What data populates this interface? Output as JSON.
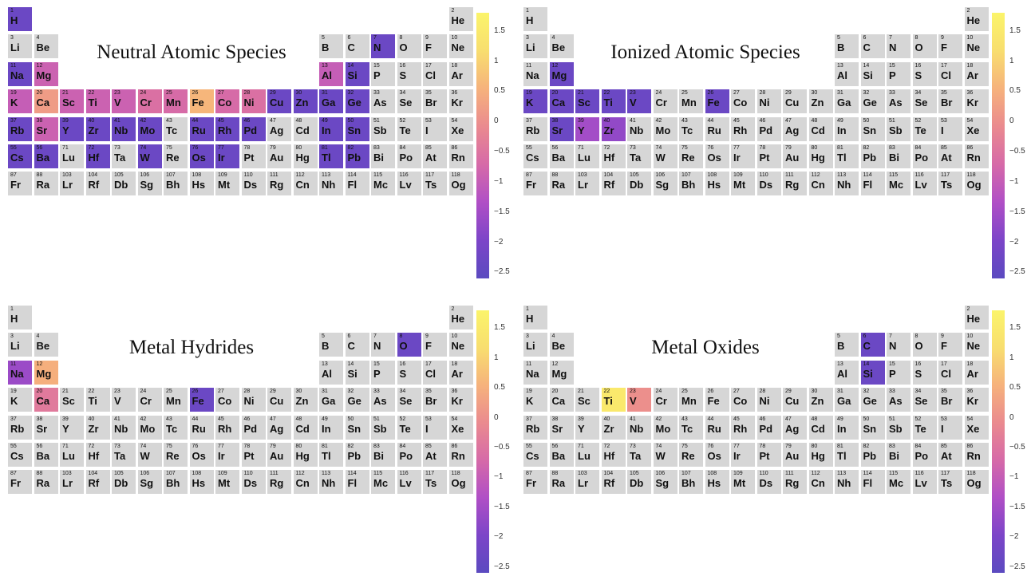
{
  "colors": {
    "empty": "#d6d6d6",
    "colormap": [
      "#5b4ac0",
      "#7c45c8",
      "#b04fc6",
      "#d66aa8",
      "#ea8a8f",
      "#f6b27c",
      "#f8de6f",
      "#fbf46a"
    ]
  },
  "chart_data": [
    {
      "type": "heatmap",
      "title": "Neutral Atomic Species",
      "vmin": -2.6,
      "vmax": 1.8,
      "colorbar_ticks": [
        "1.5",
        "1",
        "0.5",
        "0",
        "−0.5",
        "−1",
        "−1.5",
        "−2",
        "−2.5"
      ],
      "values": {
        "H": -2.3,
        "N": -2.3,
        "Na": -2.3,
        "Mg": -0.9,
        "Al": -1.0,
        "Si": -2.3,
        "K": -1.0,
        "Ca": 0.2,
        "Sc": -0.9,
        "Ti": -0.9,
        "V": -0.9,
        "Cr": -0.6,
        "Mn": -0.7,
        "Fe": 0.6,
        "Co": -0.7,
        "Ni": -0.6,
        "Cu": -2.3,
        "Zn": -2.3,
        "Ga": -2.3,
        "Ge": -2.3,
        "Rb": -2.3,
        "Sr": -0.9,
        "Y": -2.3,
        "Zr": -2.3,
        "Nb": -2.3,
        "Mo": -2.3,
        "Ru": -2.3,
        "Rh": -2.3,
        "Pd": -2.3,
        "In": -2.3,
        "Sn": -2.3,
        "Cs": -2.3,
        "Ba": -2.3,
        "Hf": -2.3,
        "W": -2.3,
        "Os": -2.3,
        "Ir": -2.3,
        "Tl": -2.3,
        "Pb": -2.3
      }
    },
    {
      "type": "heatmap",
      "title": "Ionized Atomic Species",
      "vmin": -2.6,
      "vmax": 1.8,
      "colorbar_ticks": [
        "1.5",
        "1",
        "0.5",
        "0",
        "−0.5",
        "−1",
        "−1.5",
        "−2",
        "−2.5"
      ],
      "values": {
        "Mg": -2.3,
        "K": -2.3,
        "Ca": -2.3,
        "Sc": -2.3,
        "Ti": -2.3,
        "V": -2.3,
        "Fe": -2.3,
        "Sr": -2.3,
        "Y": -1.5,
        "Zr": -1.7
      }
    },
    {
      "type": "heatmap",
      "title": "Metal Hydrides",
      "vmin": -2.6,
      "vmax": 1.8,
      "colorbar_ticks": [
        "1.5",
        "1",
        "0.5",
        "0",
        "−0.5",
        "−1",
        "−1.5",
        "−2",
        "−2.5"
      ],
      "values": {
        "O": -2.3,
        "Na": -1.6,
        "Mg": 0.5,
        "Ca": -0.4,
        "Fe": -2.3
      }
    },
    {
      "type": "heatmap",
      "title": "Metal Oxides",
      "vmin": -2.6,
      "vmax": 1.8,
      "colorbar_ticks": [
        "1.5",
        "1",
        "0.5",
        "0",
        "−0.5",
        "−1",
        "−1.5",
        "−2",
        "−2.5"
      ],
      "values": {
        "C": -2.3,
        "Si": -2.3,
        "Ti": 1.5,
        "V": 0.0
      }
    }
  ],
  "elements": [
    [
      "1",
      "H",
      1,
      1
    ],
    [
      "2",
      "He",
      1,
      18
    ],
    [
      "3",
      "Li",
      2,
      1
    ],
    [
      "4",
      "Be",
      2,
      2
    ],
    [
      "5",
      "B",
      2,
      13
    ],
    [
      "6",
      "C",
      2,
      14
    ],
    [
      "7",
      "N",
      2,
      15
    ],
    [
      "8",
      "O",
      2,
      16
    ],
    [
      "9",
      "F",
      2,
      17
    ],
    [
      "10",
      "Ne",
      2,
      18
    ],
    [
      "11",
      "Na",
      3,
      1
    ],
    [
      "12",
      "Mg",
      3,
      2
    ],
    [
      "13",
      "Al",
      3,
      13
    ],
    [
      "14",
      "Si",
      3,
      14
    ],
    [
      "15",
      "P",
      3,
      15
    ],
    [
      "16",
      "S",
      3,
      16
    ],
    [
      "17",
      "Cl",
      3,
      17
    ],
    [
      "18",
      "Ar",
      3,
      18
    ],
    [
      "19",
      "K",
      4,
      1
    ],
    [
      "20",
      "Ca",
      4,
      2
    ],
    [
      "21",
      "Sc",
      4,
      3
    ],
    [
      "22",
      "Ti",
      4,
      4
    ],
    [
      "23",
      "V",
      4,
      5
    ],
    [
      "24",
      "Cr",
      4,
      6
    ],
    [
      "25",
      "Mn",
      4,
      7
    ],
    [
      "26",
      "Fe",
      4,
      8
    ],
    [
      "27",
      "Co",
      4,
      9
    ],
    [
      "28",
      "Ni",
      4,
      10
    ],
    [
      "29",
      "Cu",
      4,
      11
    ],
    [
      "30",
      "Zn",
      4,
      12
    ],
    [
      "31",
      "Ga",
      4,
      13
    ],
    [
      "32",
      "Ge",
      4,
      14
    ],
    [
      "33",
      "As",
      4,
      15
    ],
    [
      "34",
      "Se",
      4,
      16
    ],
    [
      "35",
      "Br",
      4,
      17
    ],
    [
      "36",
      "Kr",
      4,
      18
    ],
    [
      "37",
      "Rb",
      5,
      1
    ],
    [
      "38",
      "Sr",
      5,
      2
    ],
    [
      "39",
      "Y",
      5,
      3
    ],
    [
      "40",
      "Zr",
      5,
      4
    ],
    [
      "41",
      "Nb",
      5,
      5
    ],
    [
      "42",
      "Mo",
      5,
      6
    ],
    [
      "43",
      "Tc",
      5,
      7
    ],
    [
      "44",
      "Ru",
      5,
      8
    ],
    [
      "45",
      "Rh",
      5,
      9
    ],
    [
      "46",
      "Pd",
      5,
      10
    ],
    [
      "47",
      "Ag",
      5,
      11
    ],
    [
      "48",
      "Cd",
      5,
      12
    ],
    [
      "49",
      "In",
      5,
      13
    ],
    [
      "50",
      "Sn",
      5,
      14
    ],
    [
      "51",
      "Sb",
      5,
      15
    ],
    [
      "52",
      "Te",
      5,
      16
    ],
    [
      "53",
      "I",
      5,
      17
    ],
    [
      "54",
      "Xe",
      5,
      18
    ],
    [
      "55",
      "Cs",
      6,
      1
    ],
    [
      "56",
      "Ba",
      6,
      2
    ],
    [
      "71",
      "Lu",
      6,
      3
    ],
    [
      "72",
      "Hf",
      6,
      4
    ],
    [
      "73",
      "Ta",
      6,
      5
    ],
    [
      "74",
      "W",
      6,
      6
    ],
    [
      "75",
      "Re",
      6,
      7
    ],
    [
      "76",
      "Os",
      6,
      8
    ],
    [
      "77",
      "Ir",
      6,
      9
    ],
    [
      "78",
      "Pt",
      6,
      10
    ],
    [
      "79",
      "Au",
      6,
      11
    ],
    [
      "80",
      "Hg",
      6,
      12
    ],
    [
      "81",
      "Tl",
      6,
      13
    ],
    [
      "82",
      "Pb",
      6,
      14
    ],
    [
      "83",
      "Bi",
      6,
      15
    ],
    [
      "84",
      "Po",
      6,
      16
    ],
    [
      "85",
      "At",
      6,
      17
    ],
    [
      "86",
      "Rn",
      6,
      18
    ],
    [
      "87",
      "Fr",
      7,
      1
    ],
    [
      "88",
      "Ra",
      7,
      2
    ],
    [
      "103",
      "Lr",
      7,
      3
    ],
    [
      "104",
      "Rf",
      7,
      4
    ],
    [
      "105",
      "Db",
      7,
      5
    ],
    [
      "106",
      "Sg",
      7,
      6
    ],
    [
      "107",
      "Bh",
      7,
      7
    ],
    [
      "108",
      "Hs",
      7,
      8
    ],
    [
      "109",
      "Mt",
      7,
      9
    ],
    [
      "110",
      "Ds",
      7,
      10
    ],
    [
      "111",
      "Rg",
      7,
      11
    ],
    [
      "112",
      "Cn",
      7,
      12
    ],
    [
      "113",
      "Nh",
      7,
      13
    ],
    [
      "114",
      "Fl",
      7,
      14
    ],
    [
      "115",
      "Mc",
      7,
      15
    ],
    [
      "116",
      "Lv",
      7,
      16
    ],
    [
      "117",
      "Ts",
      7,
      17
    ],
    [
      "118",
      "Og",
      7,
      18
    ]
  ]
}
